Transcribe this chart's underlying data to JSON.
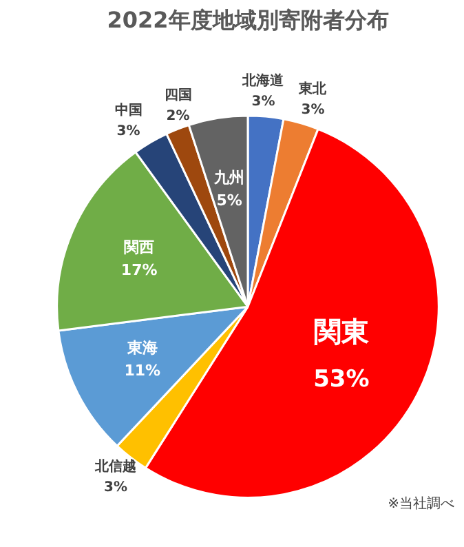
{
  "chart_data": {
    "type": "pie",
    "title": "2022年度地域別寄附者分布",
    "categories": [
      "北海道",
      "東北",
      "関東",
      "北信越",
      "東海",
      "関西",
      "中国",
      "四国",
      "九州"
    ],
    "values": [
      3,
      3,
      53,
      3,
      11,
      17,
      3,
      2,
      5
    ],
    "value_labels": [
      "3%",
      "3%",
      "53%",
      "3%",
      "11%",
      "17%",
      "3%",
      "2%",
      "5%"
    ],
    "colors": [
      "#4472c4",
      "#ed7d31",
      "#ff0000",
      "#ffc000",
      "#5b9bd5",
      "#70ad47",
      "#264478",
      "#9e480e",
      "#636363"
    ],
    "annotations": [
      "※当社調べ"
    ],
    "legend": false
  }
}
